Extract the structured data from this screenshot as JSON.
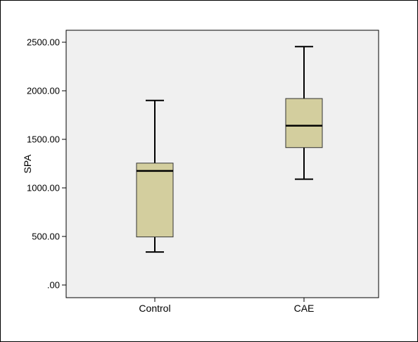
{
  "chart_data": {
    "type": "box",
    "title": "",
    "xlabel": "",
    "ylabel": "SPA",
    "ylim": [
      0,
      2500
    ],
    "yticks": [
      0,
      500,
      1000,
      1500,
      2000,
      2500
    ],
    "ytick_labels": [
      ".00",
      "500.00",
      "1000.00",
      "1500.00",
      "2000.00",
      "2500.00"
    ],
    "grid": false,
    "categories": [
      "Control",
      "CAE"
    ],
    "boxes": [
      {
        "category": "Control",
        "min": 340,
        "q1": 495,
        "median": 1175,
        "q3": 1255,
        "max": 1900
      },
      {
        "category": "CAE",
        "min": 1090,
        "q1": 1415,
        "median": 1640,
        "q3": 1920,
        "max": 2455
      }
    ],
    "colors": {
      "plot_background": "#f0f0f0",
      "box_fill": "#d3ce9e",
      "line": "#000000"
    }
  }
}
